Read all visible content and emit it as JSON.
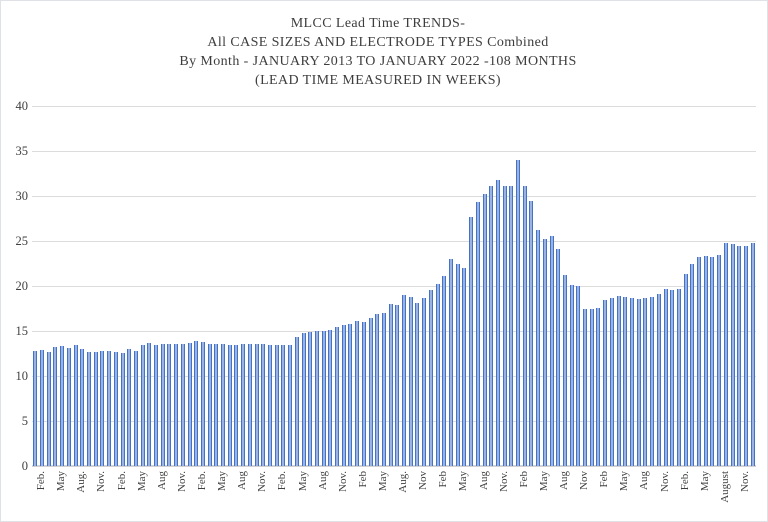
{
  "chart_data": {
    "type": "bar",
    "title_lines": [
      "MLCC Lead Time TRENDS-",
      "All CASE SIZES AND ELECTRODE  TYPES Combined",
      "By Month - JANUARY  2013 TO JANUARY  2022 -108 MONTHS",
      "(LEAD TIME MEASURED  IN WEEKS)"
    ],
    "ylabel": "",
    "xlabel": "",
    "ylim": [
      0,
      40
    ],
    "y_ticks": [
      40,
      35,
      30,
      25,
      20,
      15,
      10,
      5,
      0
    ],
    "grid": true,
    "legend": "none",
    "bar_color": "#4472c4",
    "bar_color_light": "#9ab3e2",
    "gridline_color": "#dcdcdc",
    "x_tick_start_index": 1,
    "x_tick_every": 3,
    "x_tick_labels": [
      "Feb.",
      "May",
      "Aug.",
      "Nov.",
      "Feb.",
      "May",
      "Aug",
      "Nov.",
      "Feb.",
      "May",
      "Aug",
      "Nov.",
      "Feb.",
      "May",
      "Aug",
      "Nov.",
      "Feb",
      "May",
      "Aug.",
      "Nov",
      "Feb",
      "May",
      "Aug",
      "Nov.",
      "Feb",
      "May",
      "Aug",
      "Nov",
      "Feb",
      "May",
      "Aug",
      "Nov.",
      "Feb.",
      "May",
      "August",
      "Nov."
    ],
    "values": [
      12.8,
      12.9,
      12.7,
      13.2,
      13.3,
      13.1,
      13.4,
      13.0,
      12.7,
      12.7,
      12.8,
      12.8,
      12.7,
      12.6,
      13.0,
      12.8,
      13.5,
      13.7,
      13.5,
      13.6,
      13.6,
      13.6,
      13.6,
      13.7,
      13.9,
      13.8,
      13.6,
      13.6,
      13.6,
      13.5,
      13.5,
      13.6,
      13.6,
      13.6,
      13.6,
      13.5,
      13.5,
      13.5,
      13.5,
      14.3,
      14.8,
      14.9,
      15.0,
      15.0,
      15.1,
      15.4,
      15.7,
      15.8,
      16.1,
      16.0,
      16.4,
      16.9,
      17.0,
      18.0,
      17.9,
      19.0,
      18.8,
      18.1,
      18.7,
      19.6,
      20.2,
      21.1,
      23.0,
      22.4,
      22.0,
      27.7,
      29.3,
      30.2,
      31.1,
      31.8,
      31.1,
      31.1,
      34.0,
      31.1,
      29.5,
      26.2,
      25.2,
      25.6,
      24.1,
      21.2,
      20.1,
      20.0,
      17.4,
      17.5,
      17.6,
      18.4,
      18.7,
      18.9,
      18.8,
      18.7,
      18.6,
      18.7,
      18.8,
      19.1,
      19.7,
      19.6,
      19.7,
      21.3,
      22.4,
      23.2,
      23.3,
      23.2,
      23.4,
      24.8,
      24.7,
      24.4,
      24.5,
      24.8
    ]
  }
}
